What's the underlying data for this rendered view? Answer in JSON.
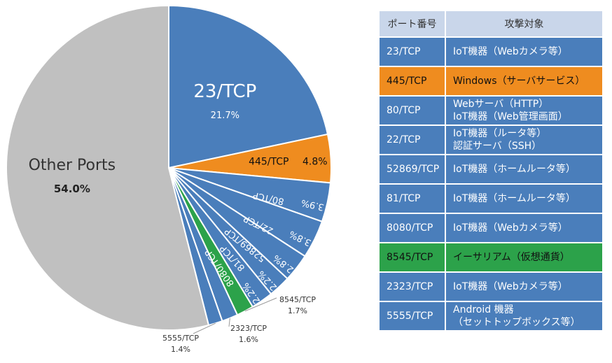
{
  "chart_data": {
    "type": "pie",
    "slices": [
      {
        "label": "23/TCP",
        "value": 21.7,
        "value_text": "21.7%",
        "color": "#4a7ebb"
      },
      {
        "label": "445/TCP",
        "value": 4.8,
        "value_text": "4.8%",
        "color": "#ef8c1f"
      },
      {
        "label": "80/TCP",
        "value": 3.9,
        "value_text": "3.9%",
        "color": "#4a7ebb"
      },
      {
        "label": "22/TCP",
        "value": 3.8,
        "value_text": "3.8%",
        "color": "#4a7ebb"
      },
      {
        "label": "52869/TCP",
        "value": 2.8,
        "value_text": "2.8%",
        "color": "#4a7ebb"
      },
      {
        "label": "81/TCP",
        "value": 2.2,
        "value_text": "2.2%",
        "color": "#4a7ebb"
      },
      {
        "label": "8080/TCP",
        "value": 2.2,
        "value_text": "2.2%",
        "color": "#4a7ebb"
      },
      {
        "label": "8545/TCP",
        "value": 1.7,
        "value_text": "1.7%",
        "color": "#2ca24a"
      },
      {
        "label": "2323/TCP",
        "value": 1.6,
        "value_text": "1.6%",
        "color": "#4a7ebb"
      },
      {
        "label": "5555/TCP",
        "value": 1.4,
        "value_text": "1.4%",
        "color": "#4a7ebb"
      },
      {
        "label": "Other Ports",
        "value": 54.0,
        "value_text": "54.0%",
        "color": "#c0c0c0"
      }
    ]
  },
  "table": {
    "headers": [
      "ポート番号",
      "攻撃対象"
    ],
    "rows": [
      {
        "port": "23/TCP",
        "target_lines": [
          "IoT機器（Webカメラ等）"
        ],
        "highlight": ""
      },
      {
        "port": "445/TCP",
        "target_lines": [
          "Windows（サーバサービス）"
        ],
        "highlight": "orange"
      },
      {
        "port": "80/TCP",
        "target_lines": [
          "Webサーバ（HTTP）",
          "IoT機器（Web管理画面）"
        ],
        "highlight": ""
      },
      {
        "port": "22/TCP",
        "target_lines": [
          "IoT機器（ルータ等）",
          "認証サーバ（SSH）"
        ],
        "highlight": ""
      },
      {
        "port": "52869/TCP",
        "target_lines": [
          "IoT機器（ホームルータ等）"
        ],
        "highlight": ""
      },
      {
        "port": "81/TCP",
        "target_lines": [
          "IoT機器（ホームルータ等）"
        ],
        "highlight": ""
      },
      {
        "port": "8080/TCP",
        "target_lines": [
          "IoT機器（Webカメラ等）"
        ],
        "highlight": ""
      },
      {
        "port": "8545/TCP",
        "target_lines": [
          "イーサリアム（仮想通貨）"
        ],
        "highlight": "green"
      },
      {
        "port": "2323/TCP",
        "target_lines": [
          "IoT機器（Webカメラ等）"
        ],
        "highlight": ""
      },
      {
        "port": "5555/TCP",
        "target_lines": [
          "Android 機器",
          "（セットトップボックス等）"
        ],
        "highlight": ""
      }
    ]
  }
}
